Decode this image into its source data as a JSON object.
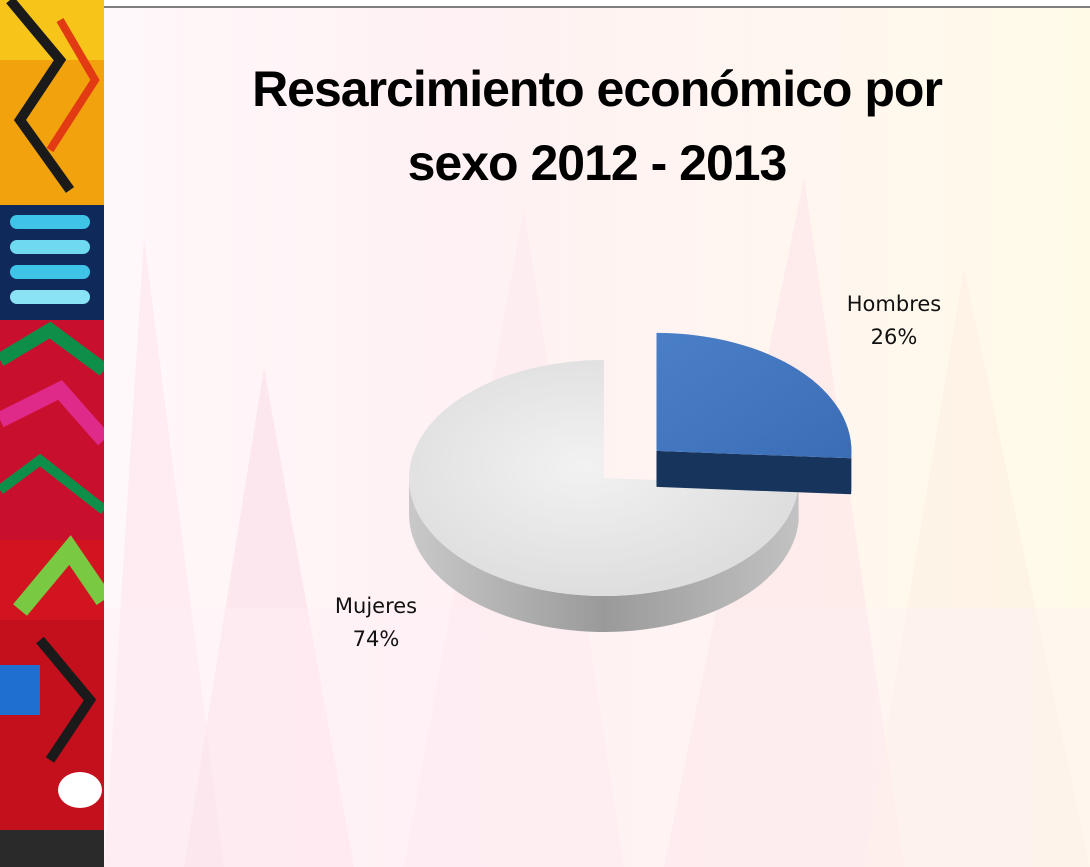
{
  "slide": {
    "title_line1": "Resarcimiento económico por",
    "title_line2": "sexo 2012 - 2013"
  },
  "chart_data": {
    "type": "pie",
    "title": "Resarcimiento económico por sexo 2012 - 2013",
    "style": "3d-exploded",
    "slices": [
      {
        "label": "Hombres",
        "value": 26,
        "display": "26%",
        "color": "#4f81bd"
      },
      {
        "label": "Mujeres",
        "value": 74,
        "display": "74%",
        "color": "#e6e6e6"
      }
    ]
  },
  "colors": {
    "hombres_top": "#4f81bd",
    "hombres_side": "#1f3f6e",
    "mujeres_top": "#e8e8e8",
    "mujeres_side": "#a8a8a8",
    "rule": "#7f7f7f"
  }
}
